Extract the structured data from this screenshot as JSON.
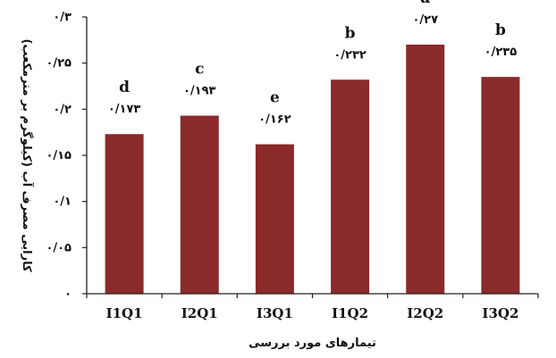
{
  "chart_data": {
    "type": "bar",
    "categories": [
      "I1Q1",
      "I2Q1",
      "I3Q1",
      "I1Q2",
      "I2Q2",
      "I3Q2"
    ],
    "values": [
      0.173,
      0.193,
      0.162,
      0.232,
      0.27,
      0.235
    ],
    "value_labels": [
      "۰/۱۷۳",
      "۰/۱۹۳",
      "۰/۱۶۲",
      "۰/۲۳۲",
      "۰/۲۷",
      "۰/۲۳۵"
    ],
    "significance_letters": [
      "d",
      "c",
      "e",
      "b",
      "a",
      "b"
    ],
    "ylim": [
      0,
      0.3
    ],
    "yticks": [
      0,
      0.05,
      0.1,
      0.15,
      0.2,
      0.25,
      0.3
    ],
    "ytick_labels": [
      "۰",
      "۰/۰۵",
      "۰/۱",
      "۰/۱۵",
      "۰/۲",
      "۰/۲۵",
      "۰/۳"
    ],
    "xlabel": "تیمارهای مورد بررسی",
    "ylabel": "کارایی مصرف آب (کیلوگرم بر مترمکعب)",
    "bar_color": "#8b2a2a",
    "grid": false,
    "legend": "none"
  }
}
